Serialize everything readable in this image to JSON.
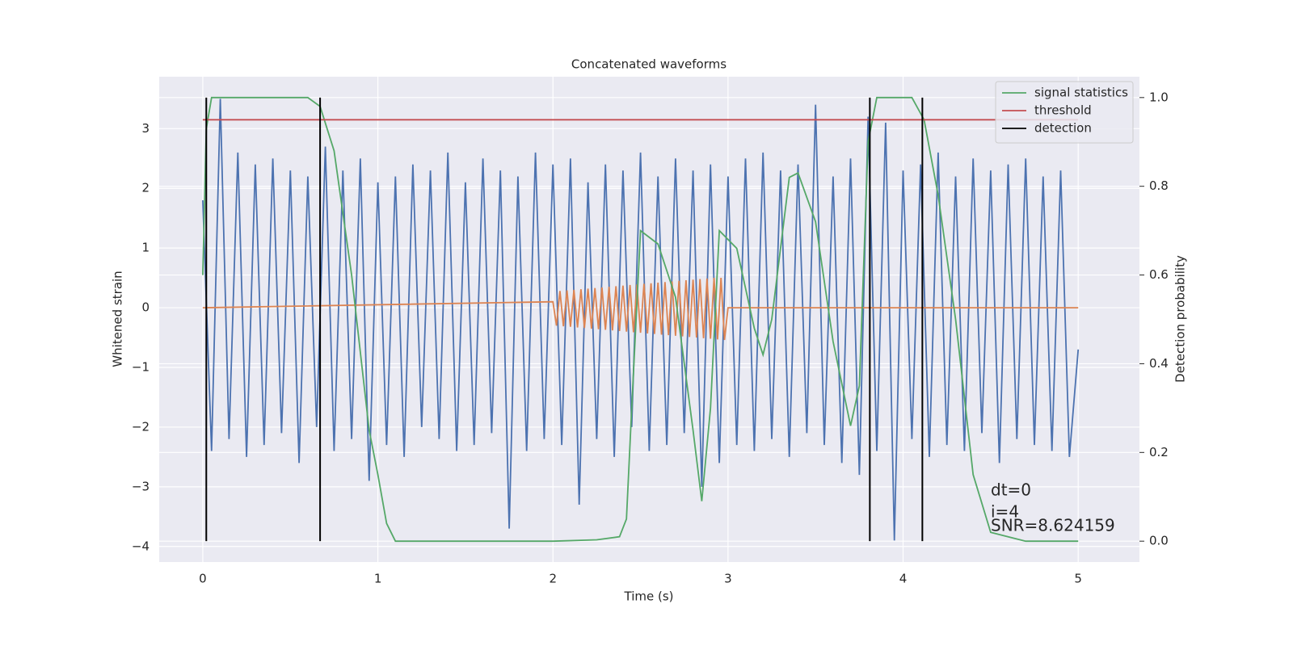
{
  "chart_data": {
    "type": "line",
    "title": "Concatenated waveforms",
    "xlabel": "Time (s)",
    "ylabel": "Whitened strain",
    "y2label": "Detection probability",
    "xlim": [
      -0.249,
      5.35
    ],
    "ylim": [
      -4.26,
      3.87
    ],
    "y2lim": [
      -0.047,
      1.047
    ],
    "xticks": [
      0,
      1,
      2,
      3,
      4,
      5
    ],
    "yticks": [
      {
        "value": -4,
        "label": "−4"
      },
      {
        "value": -3,
        "label": "−3"
      },
      {
        "value": -2,
        "label": "−2"
      },
      {
        "value": -1,
        "label": "−1"
      },
      0,
      1,
      2,
      3
    ],
    "y2ticks": [
      {
        "value": 0,
        "label": "0.0"
      },
      {
        "value": 0.2,
        "label": "0.2"
      },
      {
        "value": 0.4,
        "label": "0.4"
      },
      {
        "value": 0.6,
        "label": "0.6"
      },
      {
        "value": 0.8,
        "label": "0.8"
      },
      {
        "value": 1,
        "label": "1.0"
      }
    ],
    "grid": true,
    "legend": "upper right",
    "series": [
      {
        "name": "signal statistics",
        "color": "#55a868",
        "axis": "y2",
        "x": [
          0,
          0.02,
          0.05,
          0.3,
          0.6,
          0.67,
          0.75,
          0.85,
          0.95,
          1.0,
          1.05,
          1.1,
          1.5,
          2.0,
          2.25,
          2.38,
          2.42,
          2.45,
          2.5,
          2.6,
          2.7,
          2.8,
          2.85,
          2.9,
          2.95,
          3.05,
          3.15,
          3.2,
          3.25,
          3.35,
          3.4,
          3.5,
          3.6,
          3.7,
          3.75,
          3.8,
          3.85,
          4.05,
          4.12,
          4.2,
          4.3,
          4.4,
          4.5,
          4.6,
          4.7,
          5.0
        ],
        "values": [
          0.6,
          0.93,
          1.0,
          1.0,
          1.0,
          0.98,
          0.88,
          0.6,
          0.25,
          0.15,
          0.04,
          0.0,
          0.0,
          0.0,
          0.003,
          0.01,
          0.05,
          0.3,
          0.7,
          0.67,
          0.55,
          0.25,
          0.09,
          0.3,
          0.7,
          0.66,
          0.48,
          0.42,
          0.5,
          0.82,
          0.83,
          0.72,
          0.45,
          0.26,
          0.35,
          0.9,
          1.0,
          1.0,
          0.95,
          0.78,
          0.5,
          0.15,
          0.02,
          0.01,
          0.0,
          0.0
        ]
      },
      {
        "name": "threshold",
        "color": "#c44e52",
        "axis": "y2",
        "x": [
          0,
          5
        ],
        "values": [
          0.95,
          0.95
        ]
      },
      {
        "color": "#4c72b0",
        "x": [
          0,
          0.05,
          0.1,
          0.15,
          0.2,
          0.25,
          0.3,
          0.35,
          0.4,
          0.45,
          0.5,
          0.55,
          0.6,
          0.65,
          0.7,
          0.75,
          0.8,
          0.85,
          0.9,
          0.95,
          1.0,
          1.05,
          1.1,
          1.15,
          1.2,
          1.25,
          1.3,
          1.35,
          1.4,
          1.45,
          1.5,
          1.55,
          1.6,
          1.65,
          1.7,
          1.75,
          1.8,
          1.85,
          1.9,
          1.95,
          2.0,
          2.05,
          2.1,
          2.15,
          2.2,
          2.25,
          2.3,
          2.35,
          2.4,
          2.45,
          2.5,
          2.55,
          2.6,
          2.65,
          2.7,
          2.75,
          2.8,
          2.85,
          2.9,
          2.95,
          3.0,
          3.05,
          3.1,
          3.15,
          3.2,
          3.25,
          3.3,
          3.35,
          3.4,
          3.45,
          3.5,
          3.55,
          3.6,
          3.65,
          3.7,
          3.75,
          3.8,
          3.85,
          3.9,
          3.95,
          4.0,
          4.05,
          4.1,
          4.15,
          4.2,
          4.25,
          4.3,
          4.35,
          4.4,
          4.45,
          4.5,
          4.55,
          4.6,
          4.65,
          4.7,
          4.75,
          4.8,
          4.85,
          4.9,
          4.95,
          5.0
        ],
        "values": [
          1.8,
          -2.4,
          3.5,
          -2.2,
          2.6,
          -2.5,
          2.4,
          -2.3,
          2.5,
          -2.1,
          2.3,
          -2.6,
          2.2,
          -2.0,
          2.7,
          -2.4,
          2.3,
          -2.2,
          2.5,
          -2.9,
          2.1,
          -2.3,
          2.2,
          -2.5,
          2.4,
          -2.0,
          2.3,
          -2.2,
          2.6,
          -2.4,
          2.1,
          -2.3,
          2.5,
          -2.1,
          2.3,
          -3.7,
          2.2,
          -2.4,
          2.6,
          -2.2,
          2.4,
          -2.3,
          2.5,
          -3.3,
          2.1,
          -2.2,
          2.4,
          -2.5,
          2.3,
          -2.0,
          2.6,
          -2.4,
          2.2,
          -2.3,
          2.5,
          -2.1,
          2.3,
          -3.0,
          2.4,
          -2.6,
          2.2,
          -2.3,
          2.5,
          -2.4,
          2.6,
          -2.2,
          2.3,
          -2.5,
          2.4,
          -2.1,
          3.4,
          -2.3,
          2.2,
          -2.6,
          2.5,
          -2.8,
          3.2,
          -2.4,
          3.1,
          -3.9,
          2.3,
          -2.2,
          2.4,
          -2.5,
          2.6,
          -2.3,
          2.2,
          -2.4,
          2.5,
          -2.1,
          2.3,
          -2.6,
          2.4,
          -2.2,
          2.5,
          -2.3,
          2.2,
          -2.4,
          2.3,
          -2.5,
          -0.7
        ]
      },
      {
        "color": "#dd8452",
        "x": [
          0,
          2.0,
          2.02,
          2.04,
          2.06,
          2.08,
          2.1,
          2.12,
          2.14,
          2.16,
          2.18,
          2.2,
          2.22,
          2.24,
          2.26,
          2.28,
          2.3,
          2.32,
          2.34,
          2.36,
          2.38,
          2.4,
          2.42,
          2.44,
          2.46,
          2.48,
          2.5,
          2.52,
          2.54,
          2.56,
          2.58,
          2.6,
          2.62,
          2.64,
          2.66,
          2.68,
          2.7,
          2.72,
          2.74,
          2.76,
          2.78,
          2.8,
          2.82,
          2.84,
          2.86,
          2.88,
          2.9,
          2.92,
          2.94,
          2.96,
          2.98,
          3.0,
          5.0
        ],
        "values": [
          0,
          0.1,
          -0.3,
          0.28,
          -0.31,
          0.29,
          -0.32,
          0.3,
          -0.33,
          0.31,
          -0.34,
          0.32,
          -0.35,
          0.33,
          -0.36,
          0.34,
          -0.37,
          0.35,
          -0.38,
          0.36,
          -0.39,
          0.37,
          -0.4,
          0.38,
          -0.41,
          0.39,
          -0.42,
          0.4,
          -0.43,
          0.41,
          -0.44,
          0.42,
          -0.45,
          0.43,
          -0.46,
          0.44,
          -0.47,
          0.45,
          -0.48,
          0.46,
          -0.49,
          0.47,
          -0.5,
          0.48,
          -0.51,
          0.49,
          -0.52,
          0.5,
          -0.53,
          0.5,
          -0.54,
          0,
          0
        ]
      }
    ],
    "detection": {
      "name": "detection",
      "color": "#000000",
      "x": [
        0.02,
        0.67,
        3.81,
        4.11
      ]
    },
    "annotations": [
      "dt=0",
      "i=4",
      "SNR=8.624159"
    ]
  }
}
